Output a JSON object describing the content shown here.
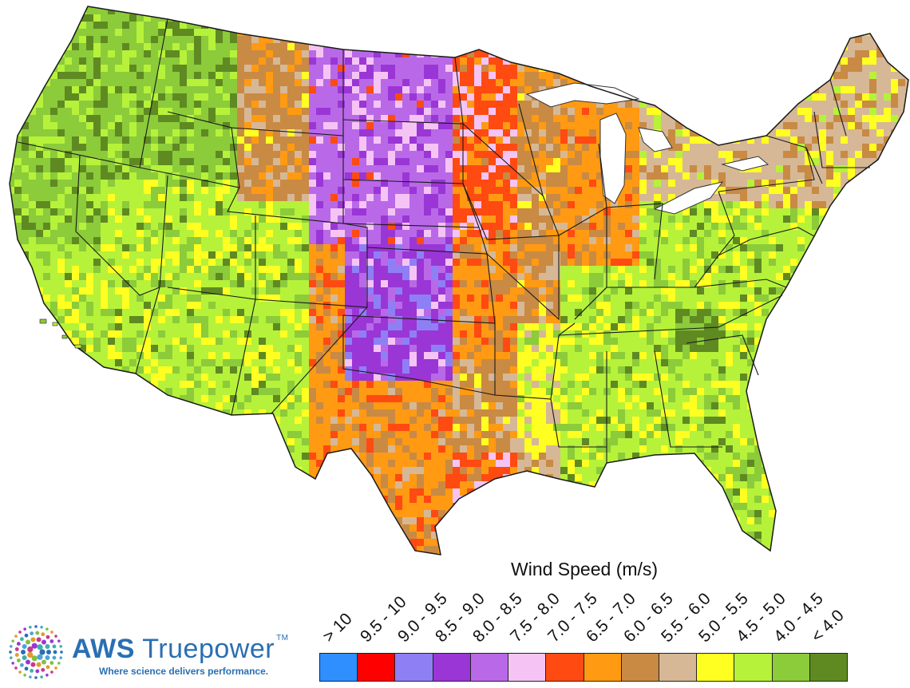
{
  "legend": {
    "title": "Wind Speed (m/s)",
    "classes": [
      {
        "label": "> 10",
        "color": "#2f8fff"
      },
      {
        "label": "9.5 - 10",
        "color": "#ff0000"
      },
      {
        "label": "9.0 - 9.5",
        "color": "#8f7ff5"
      },
      {
        "label": "8.5 - 9.0",
        "color": "#9a36d6"
      },
      {
        "label": "8.0 - 8.5",
        "color": "#b969e8"
      },
      {
        "label": "7.5 - 8.0",
        "color": "#f5c4f5"
      },
      {
        "label": "7.0 - 7.5",
        "color": "#ff4a12"
      },
      {
        "label": "6.5 - 7.0",
        "color": "#ff9a12"
      },
      {
        "label": "6.0 - 6.5",
        "color": "#c98a44"
      },
      {
        "label": "5.5 - 6.0",
        "color": "#d6b896"
      },
      {
        "label": "5.0 - 5.5",
        "color": "#ffff22"
      },
      {
        "label": "4.5 - 5.0",
        "color": "#b6f23a"
      },
      {
        "label": "4.0 - 4.5",
        "color": "#8ccb3a"
      },
      {
        "label": "< 4.0",
        "color": "#5f8a22"
      }
    ]
  },
  "logo": {
    "brand_bold": "AWS",
    "brand_light": "Truepower",
    "trademark": "TM",
    "tagline": "Where science delivers performance."
  }
}
